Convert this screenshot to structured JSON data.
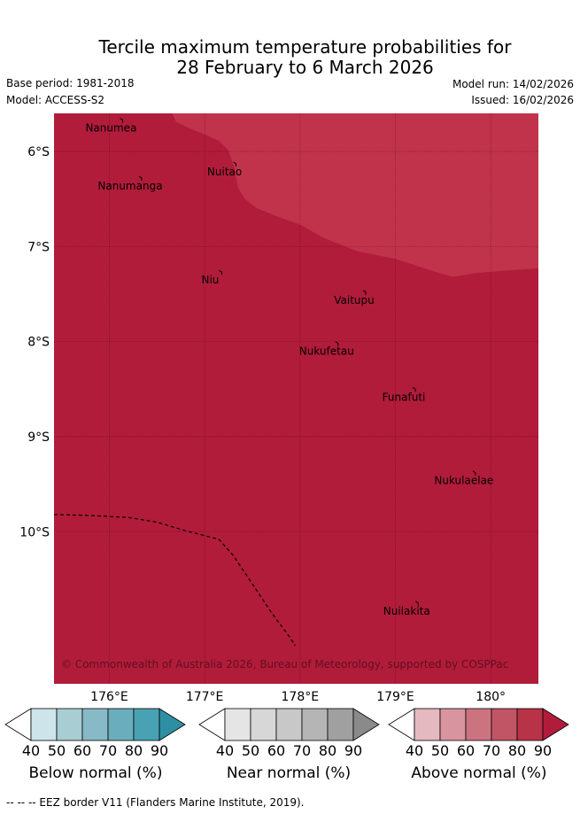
{
  "header": {
    "title_line1": "Tercile maximum temperature probabilities for",
    "title_line2": "28 February to 6 March 2026",
    "base_period": "Base period: 1981-2018",
    "model": "Model: ACCESS-S2",
    "model_run": "Model run: 14/02/2026",
    "issued": "Issued: 16/02/2026"
  },
  "chart_data": {
    "type": "map",
    "title": "Tercile maximum temperature probabilities for 28 February to 6 March 2026",
    "xlim": [
      175.42,
      180.5
    ],
    "ylim": [
      -11.6,
      -5.6
    ],
    "x_ticks": [
      {
        "value": 176,
        "label": "176°E"
      },
      {
        "value": 177,
        "label": "177°E"
      },
      {
        "value": 178,
        "label": "178°E"
      },
      {
        "value": 179,
        "label": "179°E"
      },
      {
        "value": 180,
        "label": "180°"
      }
    ],
    "y_ticks": [
      {
        "value": -6,
        "label": "6°S"
      },
      {
        "value": -7,
        "label": "7°S"
      },
      {
        "value": -8,
        "label": "8°S"
      },
      {
        "value": -9,
        "label": "9°S"
      },
      {
        "value": -10,
        "label": "10°S"
      }
    ],
    "regions": [
      {
        "category": "Above normal",
        "class": "80-90%",
        "color": "#b11c3a",
        "description": "most of map"
      },
      {
        "category": "Above normal",
        "class": "70-80%",
        "color": "#c0334b",
        "boundary_lonlat": [
          [
            176.66,
            -5.6
          ],
          [
            176.7,
            -5.69
          ],
          [
            176.85,
            -5.76
          ],
          [
            177.0,
            -5.82
          ],
          [
            177.15,
            -5.89
          ],
          [
            177.25,
            -5.99
          ],
          [
            177.31,
            -6.17
          ],
          [
            177.35,
            -6.38
          ],
          [
            177.42,
            -6.5
          ],
          [
            177.55,
            -6.6
          ],
          [
            177.75,
            -6.68
          ],
          [
            178.0,
            -6.77
          ],
          [
            178.25,
            -6.91
          ],
          [
            178.6,
            -7.05
          ],
          [
            179.0,
            -7.13
          ],
          [
            179.4,
            -7.26
          ],
          [
            179.6,
            -7.32
          ],
          [
            179.85,
            -7.28
          ],
          [
            180.2,
            -7.25
          ],
          [
            180.5,
            -7.23
          ],
          [
            180.5,
            -5.6
          ]
        ]
      }
    ],
    "places": [
      {
        "name": "Nanumea",
        "lon": 176.13,
        "lat": -5.67
      },
      {
        "name": "Nuitao",
        "lon": 177.32,
        "lat": -6.13
      },
      {
        "name": "Nanumanga",
        "lon": 176.33,
        "lat": -6.28
      },
      {
        "name": "Niu",
        "lon": 177.17,
        "lat": -7.27
      },
      {
        "name": "Vaitupu",
        "lon": 178.68,
        "lat": -7.48
      },
      {
        "name": "Nukufetau",
        "lon": 178.39,
        "lat": -8.02
      },
      {
        "name": "Funafuti",
        "lon": 179.2,
        "lat": -8.5
      },
      {
        "name": "Nukulaelae",
        "lon": 179.83,
        "lat": -9.38
      },
      {
        "name": "Nuilakita",
        "lon": 179.23,
        "lat": -10.75
      }
    ],
    "eez_border_lonlat": [
      [
        175.42,
        -9.82
      ],
      [
        175.8,
        -9.83
      ],
      [
        176.2,
        -9.85
      ],
      [
        176.5,
        -9.9
      ],
      [
        176.8,
        -9.99
      ],
      [
        177.15,
        -10.08
      ],
      [
        177.3,
        -10.25
      ],
      [
        177.5,
        -10.55
      ],
      [
        177.7,
        -10.85
      ],
      [
        177.9,
        -11.12
      ],
      [
        177.95,
        -11.2
      ]
    ],
    "copyright": "© Commonwealth of Australia 2026, Bureau of Meteorology, supported by COSPPac",
    "colorbars": [
      {
        "label": "Below normal (%)",
        "ticks": [
          "40",
          "50",
          "60",
          "70",
          "80",
          "90"
        ],
        "colors": [
          "#cde5ea",
          "#a8cdd3",
          "#88b9c6",
          "#6aaebe",
          "#48a2b4",
          "#2e8fa3"
        ]
      },
      {
        "label": "Near normal (%)",
        "ticks": [
          "40",
          "50",
          "60",
          "70",
          "80",
          "90"
        ],
        "colors": [
          "#e5e5e5",
          "#d7d7d7",
          "#c8c8c8",
          "#b5b5b5",
          "#a0a0a0",
          "#8a8a8a"
        ]
      },
      {
        "label": "Above normal (%)",
        "ticks": [
          "40",
          "50",
          "60",
          "70",
          "80",
          "90"
        ],
        "colors": [
          "#e4b9c0",
          "#d8959f",
          "#cc7380",
          "#c25565",
          "#b83348",
          "#b11c3a"
        ]
      }
    ]
  },
  "footer": {
    "legend_text": "--  --  -- EEZ border V11 (Flanders Marine Institute, 2019)."
  }
}
